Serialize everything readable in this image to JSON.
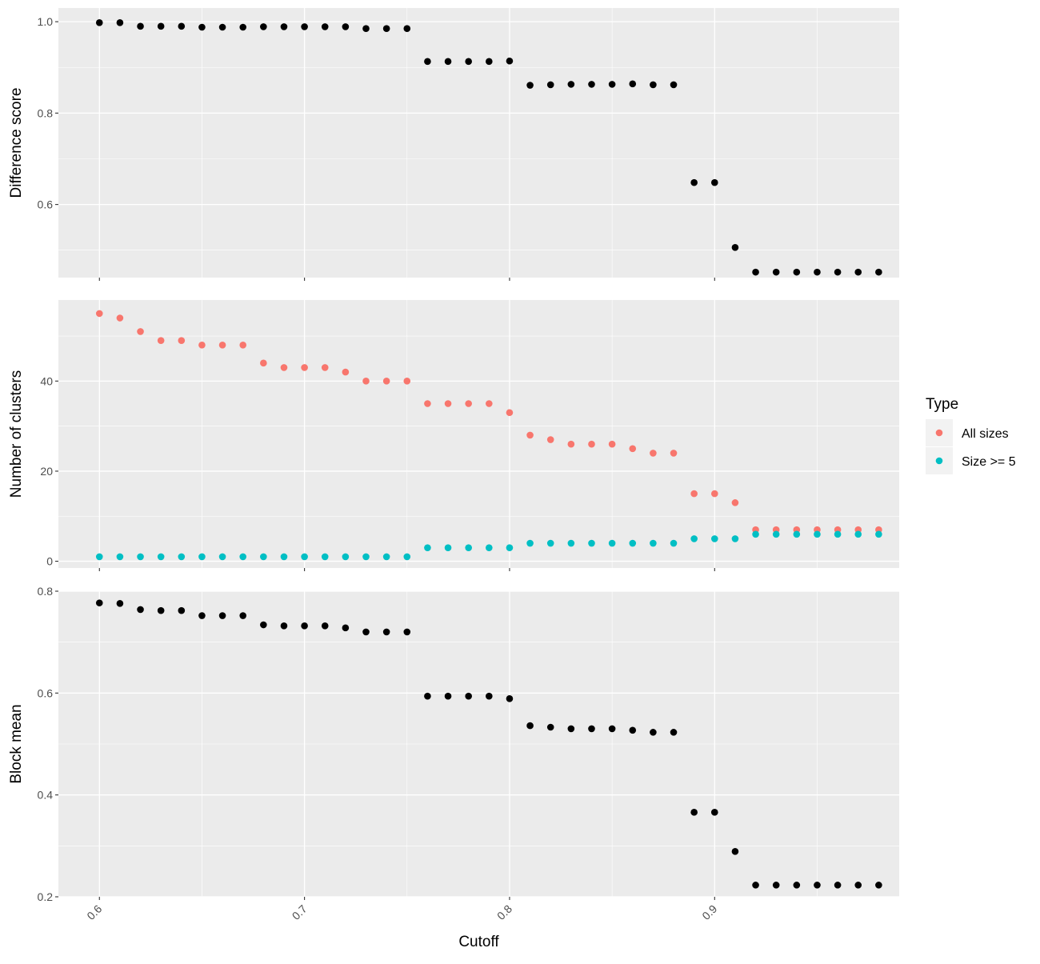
{
  "chart_data": [
    {
      "type": "scatter",
      "title": "",
      "ylabel": "Difference score",
      "xlabel": "",
      "xlim": [
        0.58,
        0.99
      ],
      "ylim": [
        0.44,
        1.03
      ],
      "yticks": [
        0.6,
        0.8,
        1.0
      ],
      "ytick_labels": [
        "0.6",
        "0.8",
        "1.0"
      ],
      "grid": true,
      "x": [
        0.6,
        0.61,
        0.62,
        0.63,
        0.64,
        0.65,
        0.66,
        0.67,
        0.68,
        0.69,
        0.7,
        0.71,
        0.72,
        0.73,
        0.74,
        0.75,
        0.76,
        0.77,
        0.78,
        0.79,
        0.8,
        0.81,
        0.82,
        0.83,
        0.84,
        0.85,
        0.86,
        0.87,
        0.88,
        0.89,
        0.9,
        0.91,
        0.92,
        0.93,
        0.94,
        0.95,
        0.96,
        0.97,
        0.98
      ],
      "series": [
        {
          "color": "#000000",
          "values": [
            0.998,
            0.998,
            0.99,
            0.99,
            0.99,
            0.988,
            0.988,
            0.988,
            0.989,
            0.989,
            0.989,
            0.989,
            0.989,
            0.985,
            0.985,
            0.985,
            0.913,
            0.913,
            0.913,
            0.913,
            0.914,
            0.861,
            0.862,
            0.863,
            0.863,
            0.863,
            0.864,
            0.862,
            0.862,
            0.648,
            0.648,
            0.506,
            0.452,
            0.452,
            0.452,
            0.452,
            0.452,
            0.452,
            0.452
          ]
        }
      ]
    },
    {
      "type": "scatter",
      "title": "",
      "ylabel": "Number of clusters",
      "xlabel": "",
      "xlim": [
        0.58,
        0.99
      ],
      "ylim": [
        -1.5,
        58
      ],
      "yticks": [
        0,
        20,
        40
      ],
      "ytick_labels": [
        "0",
        "20",
        "40"
      ],
      "grid": true,
      "x": [
        0.6,
        0.61,
        0.62,
        0.63,
        0.64,
        0.65,
        0.66,
        0.67,
        0.68,
        0.69,
        0.7,
        0.71,
        0.72,
        0.73,
        0.74,
        0.75,
        0.76,
        0.77,
        0.78,
        0.79,
        0.8,
        0.81,
        0.82,
        0.83,
        0.84,
        0.85,
        0.86,
        0.87,
        0.88,
        0.89,
        0.9,
        0.91,
        0.92,
        0.93,
        0.94,
        0.95,
        0.96,
        0.97,
        0.98
      ],
      "series": [
        {
          "name": "All sizes",
          "color": "#F8766D",
          "values": [
            55,
            54,
            51,
            49,
            49,
            48,
            48,
            48,
            44,
            43,
            43,
            43,
            42,
            40,
            40,
            40,
            35,
            35,
            35,
            35,
            33,
            28,
            27,
            26,
            26,
            26,
            25,
            24,
            24,
            15,
            15,
            13,
            7,
            7,
            7,
            7,
            7,
            7,
            7
          ]
        },
        {
          "name": "Size >= 5",
          "color": "#00BFC4",
          "values": [
            1,
            1,
            1,
            1,
            1,
            1,
            1,
            1,
            1,
            1,
            1,
            1,
            1,
            1,
            1,
            1,
            3,
            3,
            3,
            3,
            3,
            4,
            4,
            4,
            4,
            4,
            4,
            4,
            4,
            5,
            5,
            5,
            6,
            6,
            6,
            6,
            6,
            6,
            6
          ]
        }
      ]
    },
    {
      "type": "scatter",
      "title": "",
      "ylabel": "Block mean",
      "xlabel": "Cutoff",
      "xlim": [
        0.58,
        0.99
      ],
      "ylim": [
        0.2,
        0.8
      ],
      "yticks": [
        0.2,
        0.4,
        0.6,
        0.8
      ],
      "ytick_labels": [
        "0.2",
        "0.4",
        "0.6",
        "0.8"
      ],
      "xticks": [
        0.6,
        0.7,
        0.8,
        0.9
      ],
      "xtick_labels": [
        "0.6",
        "0.7",
        "0.8",
        "0.9"
      ],
      "grid": true,
      "x": [
        0.6,
        0.61,
        0.62,
        0.63,
        0.64,
        0.65,
        0.66,
        0.67,
        0.68,
        0.69,
        0.7,
        0.71,
        0.72,
        0.73,
        0.74,
        0.75,
        0.76,
        0.77,
        0.78,
        0.79,
        0.8,
        0.81,
        0.82,
        0.83,
        0.84,
        0.85,
        0.86,
        0.87,
        0.88,
        0.89,
        0.9,
        0.91,
        0.92,
        0.93,
        0.94,
        0.95,
        0.96,
        0.97,
        0.98
      ],
      "series": [
        {
          "color": "#000000",
          "values": [
            0.777,
            0.776,
            0.764,
            0.762,
            0.762,
            0.752,
            0.752,
            0.752,
            0.734,
            0.732,
            0.732,
            0.732,
            0.728,
            0.72,
            0.72,
            0.72,
            0.594,
            0.594,
            0.594,
            0.594,
            0.589,
            0.536,
            0.533,
            0.53,
            0.53,
            0.53,
            0.527,
            0.523,
            0.523,
            0.366,
            0.366,
            0.289,
            0.223,
            0.223,
            0.223,
            0.223,
            0.223,
            0.223,
            0.223
          ]
        }
      ]
    }
  ],
  "legend": {
    "title": "Type",
    "placement": "right",
    "items": [
      {
        "label": "All sizes",
        "color": "#F8766D"
      },
      {
        "label": "Size >= 5",
        "color": "#00BFC4"
      }
    ]
  }
}
